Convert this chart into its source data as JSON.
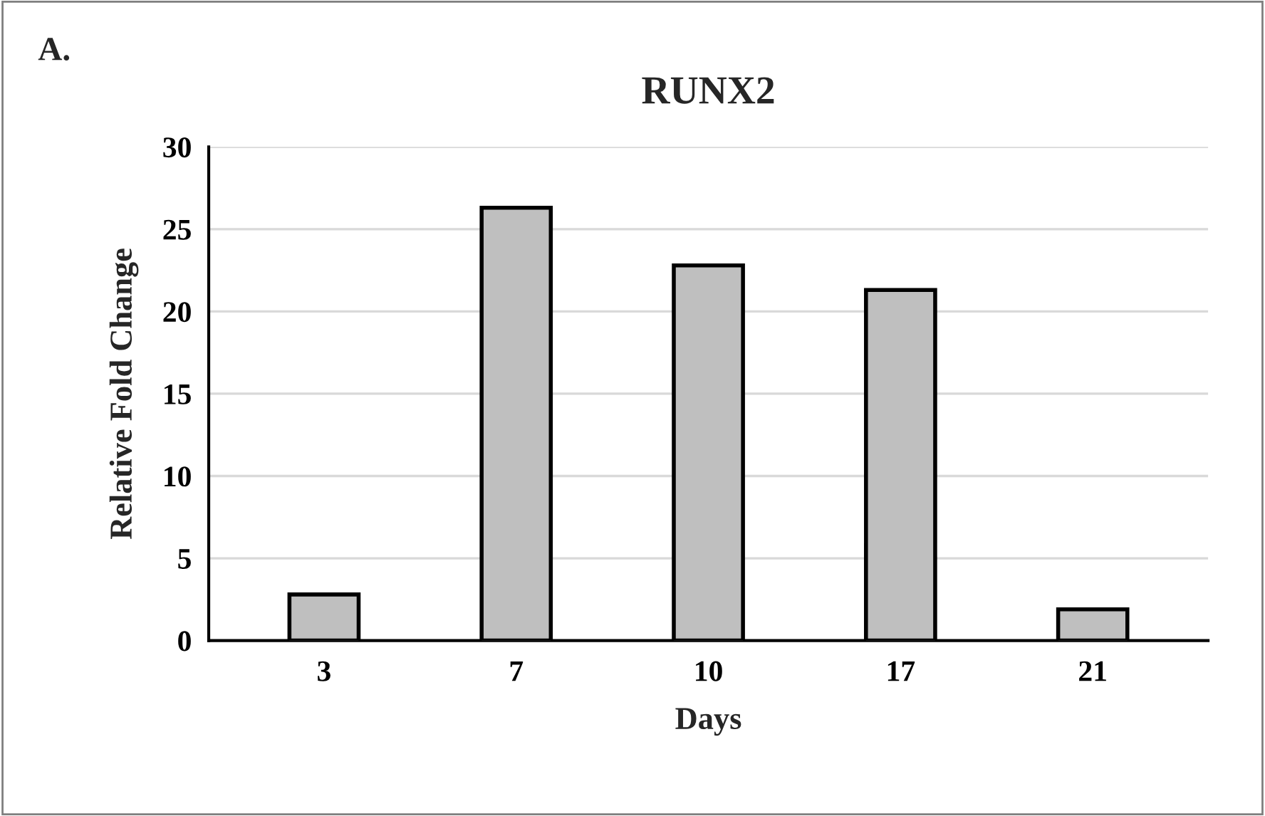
{
  "chart_data": {
    "type": "bar",
    "title": "RUNX2",
    "xlabel": "Days",
    "ylabel": "Relative Fold Change",
    "annotations": [
      "A."
    ],
    "categories": [
      "3",
      "7",
      "10",
      "17",
      "21"
    ],
    "values": [
      2.8,
      26.3,
      22.8,
      21.3,
      1.9
    ],
    "color": "#bfbfbf",
    "ylim": [
      0,
      30
    ],
    "yticks": [
      0,
      5,
      10,
      15,
      20,
      25,
      30
    ],
    "grid": "y"
  }
}
